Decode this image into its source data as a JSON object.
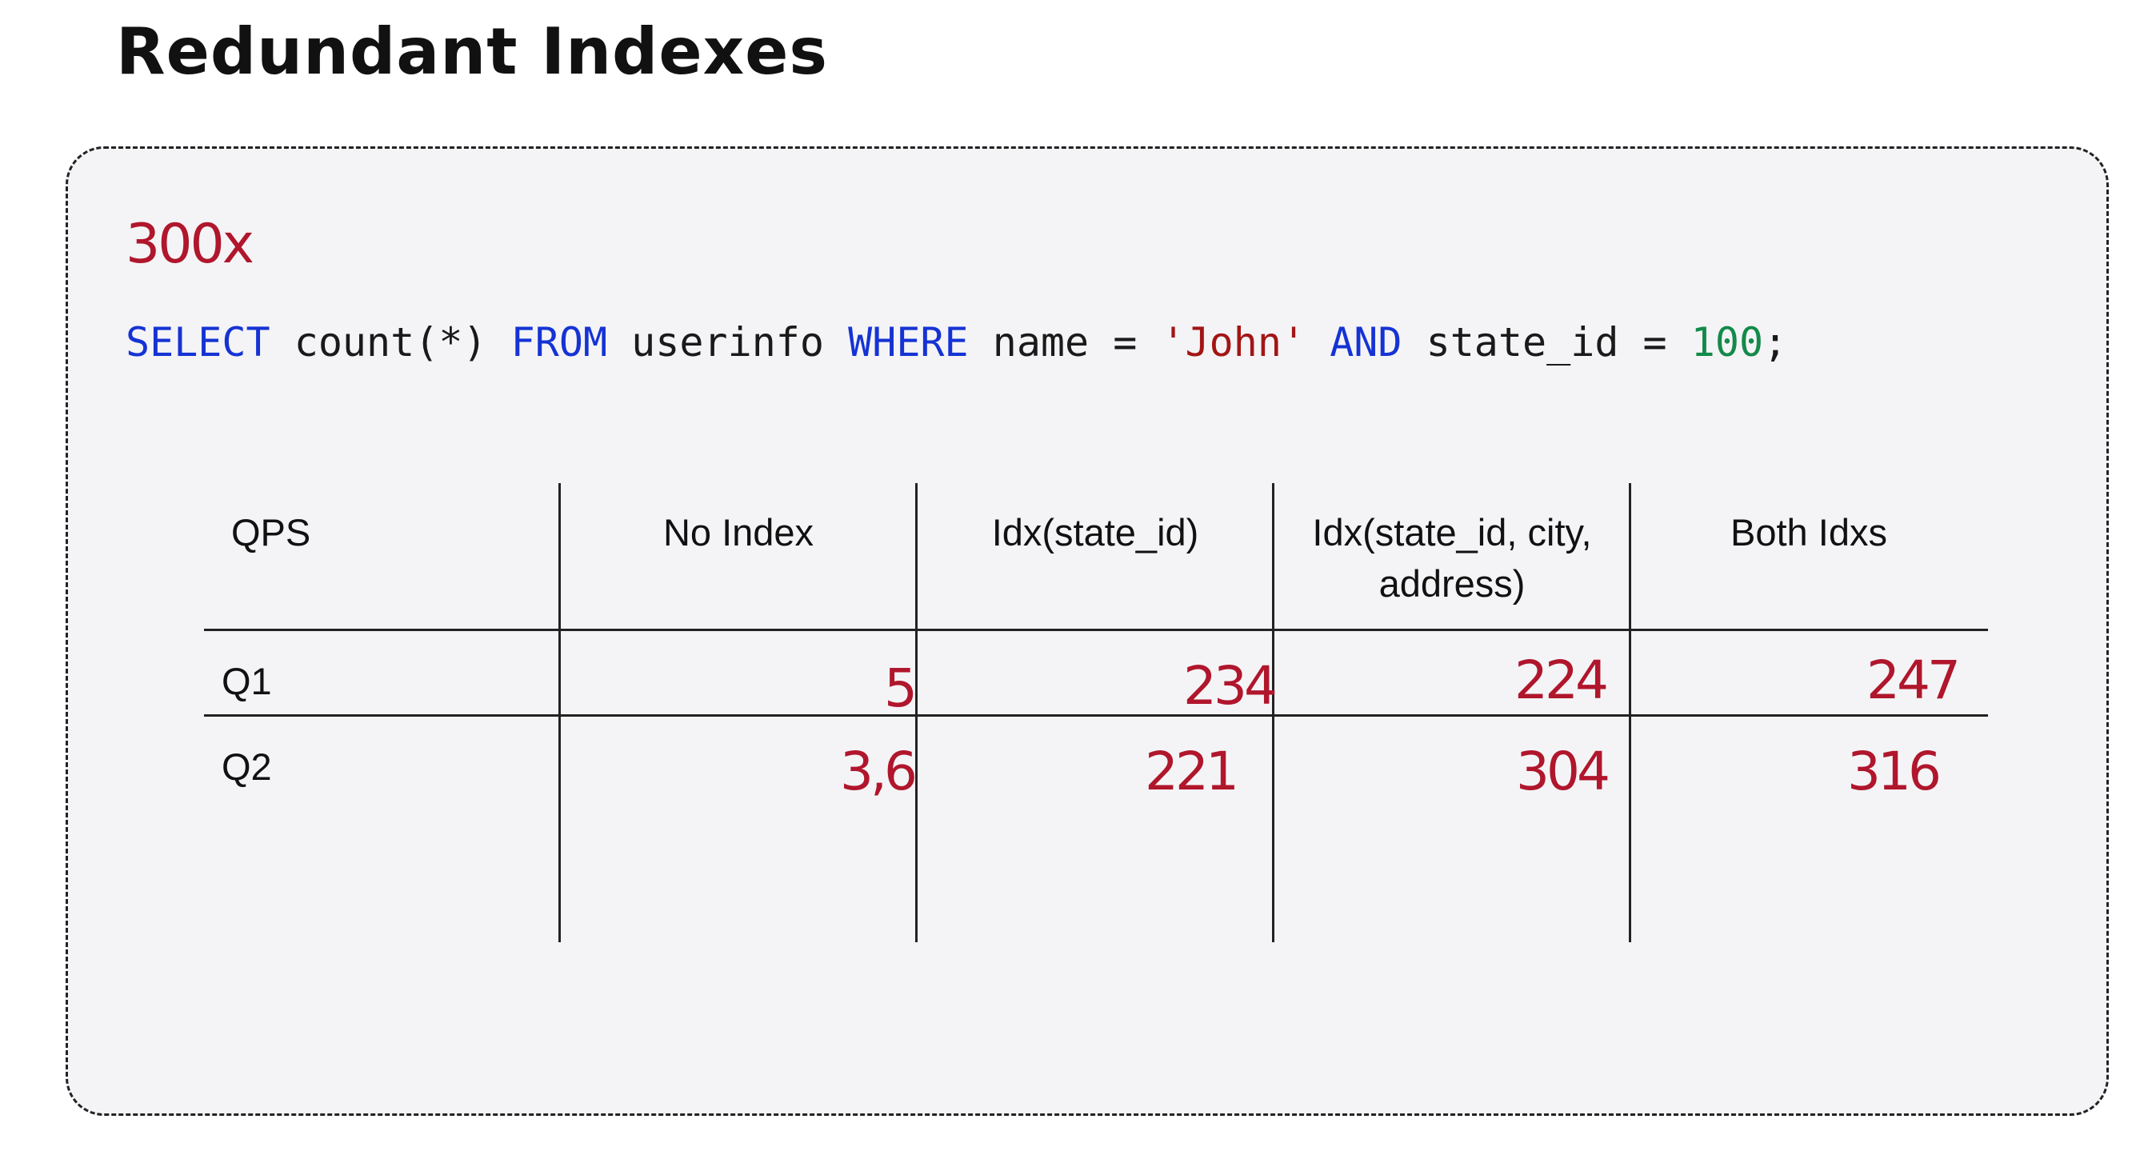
{
  "title": "Redundant Indexes",
  "annotation": "300x",
  "query": {
    "kw_select": "SELECT",
    "part_count": " count(*) ",
    "kw_from": "FROM",
    "part_table": " userinfo ",
    "kw_where": "WHERE",
    "part_name": " name = ",
    "str_john": "'John'",
    "part_space": " ",
    "kw_and": "AND",
    "part_state": " state_id = ",
    "num_value": "100",
    "part_end": ";",
    "colors": {
      "keyword": "#1533d4",
      "string": "#a31515",
      "number": "#138a4a"
    }
  },
  "table": {
    "columns": [
      "QPS",
      "No Index",
      "Idx(state_id)",
      "Idx(state_id, city,",
      "Both Idxs"
    ],
    "column4_line2": "address)",
    "rows": [
      {
        "label": "Q1",
        "values": [
          "5",
          "234",
          "224",
          "247"
        ]
      },
      {
        "label": "Q2",
        "values": [
          "3,6",
          "221",
          "304",
          "316"
        ]
      }
    ]
  },
  "colors": {
    "handwritten_red": "#b0162c",
    "panel_background": "#f4f4f6"
  }
}
